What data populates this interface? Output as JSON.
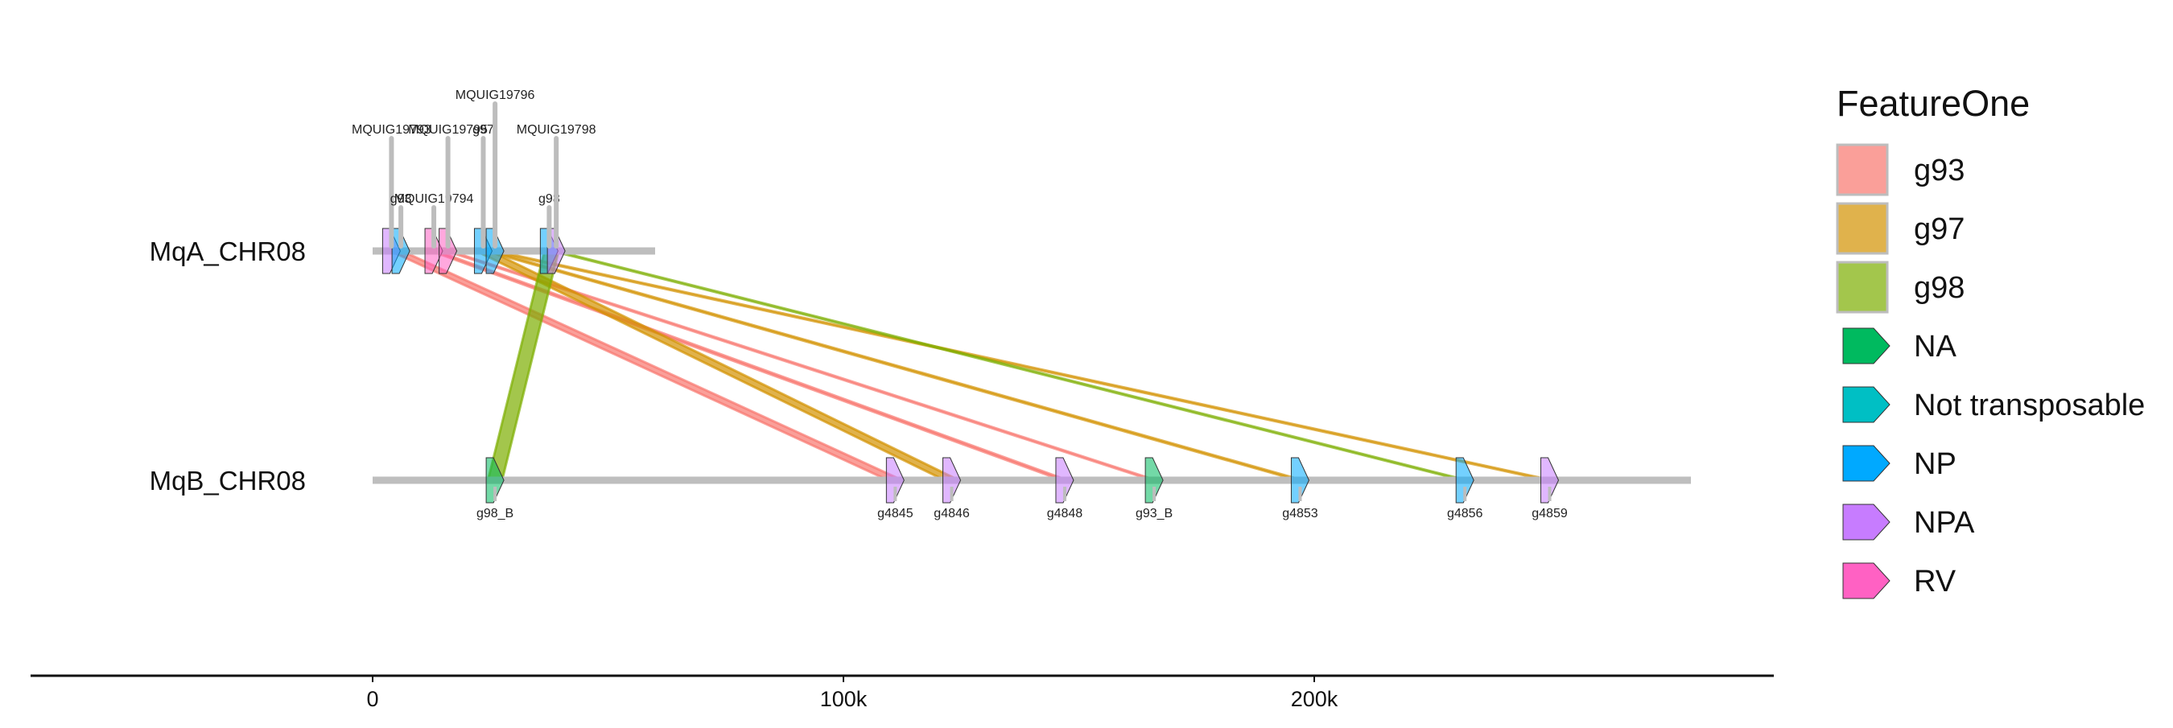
{
  "chart_data": {
    "type": "diagram",
    "sequences": [
      {
        "name": "MqA_CHR08",
        "start": 0,
        "end": 60000
      },
      {
        "name": "MqB_CHR08",
        "start": 0,
        "end": 280000
      }
    ],
    "genes": [
      {
        "name": "MQUIG19793",
        "seq": 0,
        "pos": 4000,
        "type": "NPA",
        "label_row": 3
      },
      {
        "name": "g93",
        "seq": 0,
        "pos": 6000,
        "type": "NP",
        "label_row": 1
      },
      {
        "name": "MQUIG19794",
        "seq": 0,
        "pos": 13000,
        "type": "RV",
        "label_row": 1
      },
      {
        "name": "MQUIG19795",
        "seq": 0,
        "pos": 16000,
        "type": "RV",
        "label_row": 3
      },
      {
        "name": "g97",
        "seq": 0,
        "pos": 23500,
        "type": "NP",
        "label_row": 3
      },
      {
        "name": "MQUIG19796",
        "seq": 0,
        "pos": 26000,
        "type": "NP",
        "label_row": 4
      },
      {
        "name": "g98",
        "seq": 0,
        "pos": 37500,
        "type": "NP",
        "label_row": 1
      },
      {
        "name": "MQUIG19798",
        "seq": 0,
        "pos": 39000,
        "type": "NPA",
        "label_row": 3
      },
      {
        "name": "g98_B",
        "seq": 1,
        "pos": 26000,
        "type": "NA"
      },
      {
        "name": "g4845",
        "seq": 1,
        "pos": 111000,
        "type": "NPA"
      },
      {
        "name": "g4846",
        "seq": 1,
        "pos": 123000,
        "type": "NPA"
      },
      {
        "name": "g4848",
        "seq": 1,
        "pos": 147000,
        "type": "NPA"
      },
      {
        "name": "g93_B",
        "seq": 1,
        "pos": 166000,
        "type": "NA"
      },
      {
        "name": "g4853",
        "seq": 1,
        "pos": 197000,
        "type": "NP"
      },
      {
        "name": "g4856",
        "seq": 1,
        "pos": 232000,
        "type": "NP"
      },
      {
        "name": "g4859",
        "seq": 1,
        "pos": 250000,
        "type": "NPA"
      }
    ],
    "links": [
      {
        "from": 5000,
        "to": 111000,
        "feature": "g93",
        "w_from": 2500,
        "w_to": 3000
      },
      {
        "from": 13000,
        "to": 147000,
        "feature": "g93",
        "w_from": 1200,
        "w_to": 1200
      },
      {
        "from": 16000,
        "to": 166000,
        "feature": "g93",
        "w_from": 800,
        "w_to": 800
      },
      {
        "from": 23500,
        "to": 123000,
        "feature": "g97",
        "w_from": 3000,
        "w_to": 3000
      },
      {
        "from": 24500,
        "to": 197000,
        "feature": "g97",
        "w_from": 1000,
        "w_to": 1000
      },
      {
        "from": 25500,
        "to": 250000,
        "feature": "g97",
        "w_from": 1000,
        "w_to": 1000
      },
      {
        "from": 38000,
        "to": 26000,
        "feature": "g98",
        "w_from": 3000,
        "w_to": 3000
      },
      {
        "from": 38500,
        "to": 232000,
        "feature": "g98",
        "w_from": 800,
        "w_to": 800
      }
    ],
    "x_axis": {
      "min": -73000,
      "max": 297000,
      "ticks": [
        0,
        100000,
        200000
      ],
      "tick_labels": [
        "0",
        "100k",
        "200k"
      ]
    },
    "legend": {
      "title": "FeatureOne",
      "link_items": [
        {
          "label": "g93",
          "color": "#F8766D"
        },
        {
          "label": "g97",
          "color": "#D39200"
        },
        {
          "label": "g98",
          "color": "#7CAE00"
        }
      ],
      "gene_items": [
        {
          "label": "NA",
          "color": "#00BA5F"
        },
        {
          "label": "Not transposable",
          "color": "#00BFC4"
        },
        {
          "label": "NP",
          "color": "#00A9FF"
        },
        {
          "label": "NPA",
          "color": "#C77CFF"
        },
        {
          "label": "RV",
          "color": "#FF61C3"
        }
      ]
    }
  }
}
